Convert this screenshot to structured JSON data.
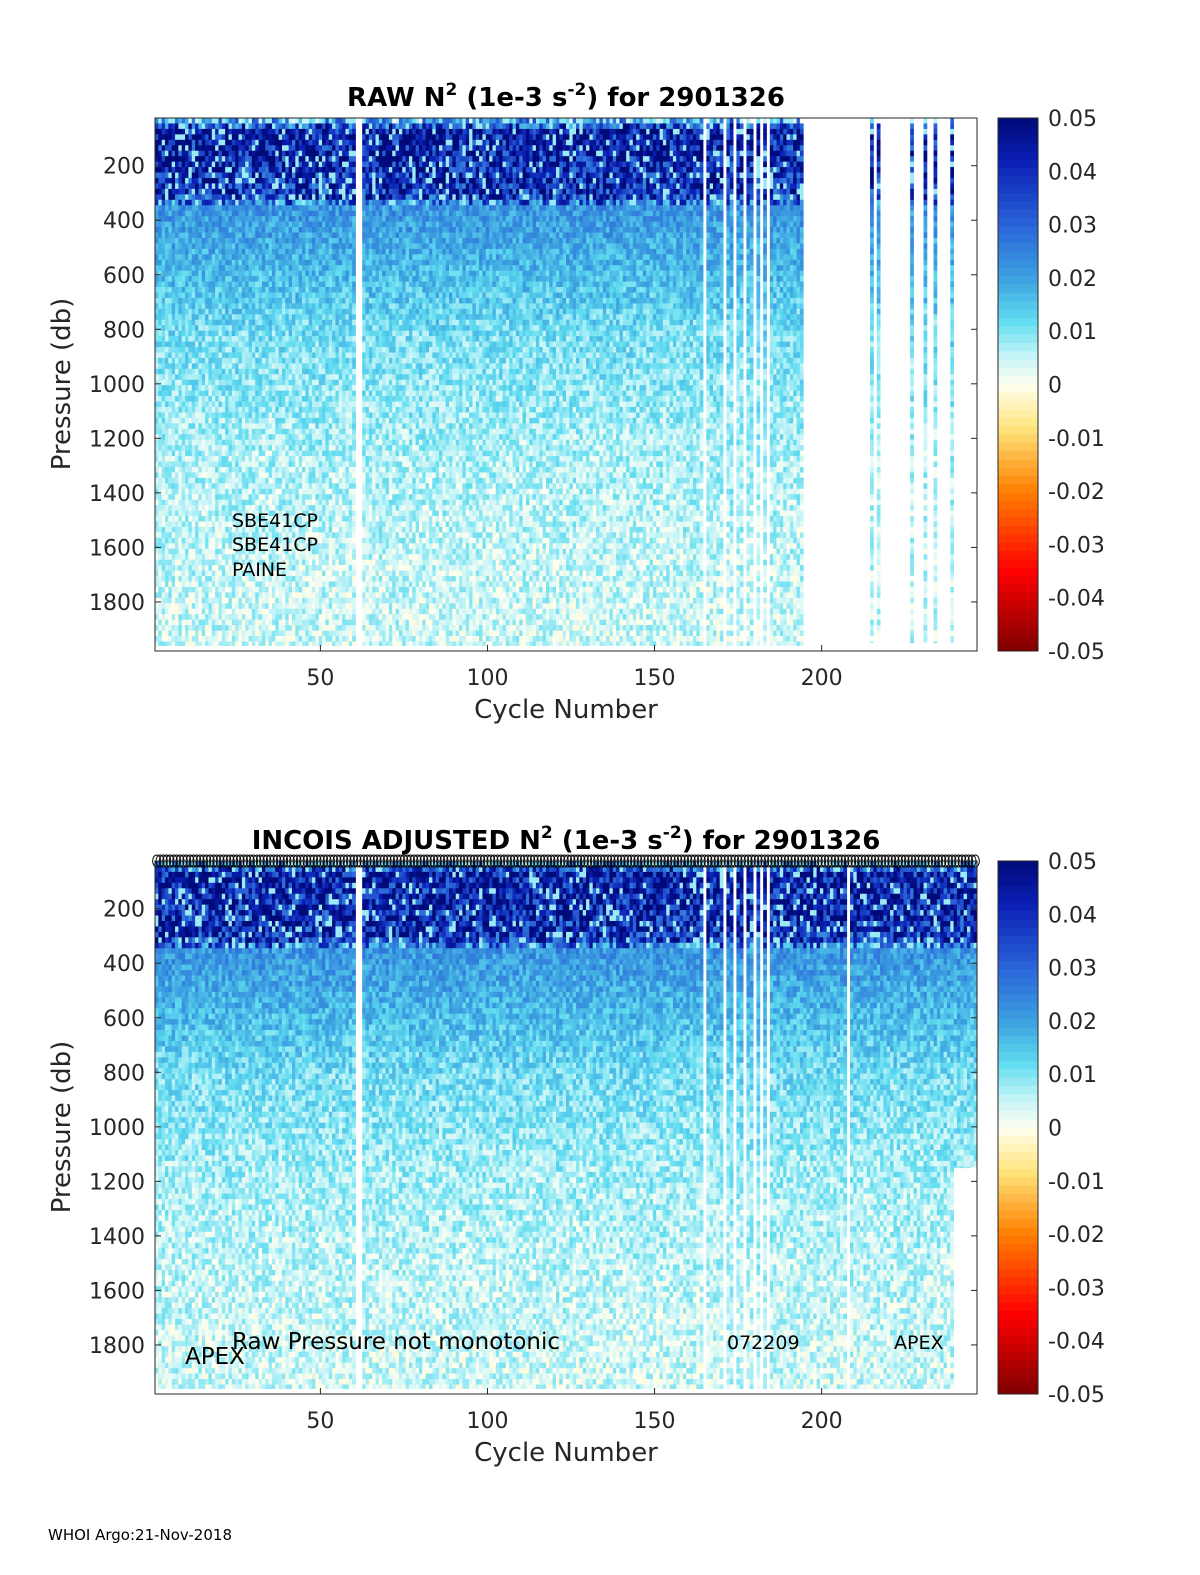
{
  "chart_data": [
    {
      "type": "heatmap",
      "title_parts": [
        "RAW N",
        "2",
        " (1e-3 s",
        "-2",
        ") for 2901326"
      ],
      "xlabel": "Cycle Number",
      "ylabel": "Pressure (db)",
      "xlim": [
        1,
        246
      ],
      "ylim": [
        1980,
        25
      ],
      "xticks": [
        50,
        100,
        150,
        200
      ],
      "yticks": [
        200,
        400,
        600,
        800,
        1000,
        1200,
        1400,
        1600,
        1800
      ],
      "colorbar": {
        "min": -0.05,
        "max": 0.05,
        "ticks": [
          "0.05",
          "0.04",
          "0.03",
          "0.02",
          "0.01",
          "0",
          "-0.01",
          "-0.02",
          "-0.03",
          "-0.04",
          "-0.05"
        ]
      },
      "colormap_stops": [
        {
          "v": -0.05,
          "color": "#7f0000"
        },
        {
          "v": -0.035,
          "color": "#ff0000"
        },
        {
          "v": -0.02,
          "color": "#ff8000"
        },
        {
          "v": -0.008,
          "color": "#ffe680"
        },
        {
          "v": 0.0,
          "color": "#fffff0"
        },
        {
          "v": 0.005,
          "color": "#c8f5f8"
        },
        {
          "v": 0.012,
          "color": "#60dcf0"
        },
        {
          "v": 0.02,
          "color": "#3ca0e0"
        },
        {
          "v": 0.03,
          "color": "#2a64d8"
        },
        {
          "v": 0.042,
          "color": "#0a1eb4"
        },
        {
          "v": 0.05,
          "color": "#000a78"
        }
      ],
      "profiles": [
        {
          "cycles": [
            1,
            194
          ],
          "max_pressure": 1960
        },
        {
          "cycles": [
            215,
            215
          ],
          "max_pressure": 1950
        },
        {
          "cycles": [
            217,
            217
          ],
          "max_pressure": 1950
        },
        {
          "cycles": [
            227,
            227
          ],
          "max_pressure": 1950
        },
        {
          "cycles": [
            231,
            231
          ],
          "max_pressure": 1950
        },
        {
          "cycles": [
            234,
            234
          ],
          "max_pressure": 1950
        },
        {
          "cycles": [
            239,
            239
          ],
          "max_pressure": 1950
        }
      ],
      "missing_cycles": [
        61,
        62,
        165,
        171,
        174,
        177,
        180,
        182,
        184
      ],
      "profile_mean": [
        {
          "p": 25,
          "v": 0.018
        },
        {
          "p": 60,
          "v": 0.045
        },
        {
          "p": 300,
          "v": 0.04
        },
        {
          "p": 340,
          "v": 0.022
        },
        {
          "p": 600,
          "v": 0.016
        },
        {
          "p": 800,
          "v": 0.011
        },
        {
          "p": 1200,
          "v": 0.007
        },
        {
          "p": 1600,
          "v": 0.005
        },
        {
          "p": 1980,
          "v": 0.004
        }
      ],
      "annotations": [
        "SBE41CP",
        "SBE41CP",
        "PAINE"
      ]
    },
    {
      "type": "heatmap",
      "title_parts": [
        "INCOIS  ADJUSTED N",
        "2",
        " (1e-3 s",
        "-2",
        ") for 2901326"
      ],
      "xlabel": "Cycle Number",
      "ylabel": "Pressure (db)",
      "xlim": [
        1,
        246
      ],
      "ylim": [
        1980,
        25
      ],
      "xticks": [
        50,
        100,
        150,
        200
      ],
      "yticks": [
        200,
        400,
        600,
        800,
        1000,
        1200,
        1400,
        1600,
        1800
      ],
      "colorbar": {
        "min": -0.05,
        "max": 0.05,
        "ticks": [
          "0.05",
          "0.04",
          "0.03",
          "0.02",
          "0.01",
          "0",
          "-0.01",
          "-0.02",
          "-0.03",
          "-0.04",
          "-0.05"
        ]
      },
      "profiles": [
        {
          "cycles": [
            1,
            239
          ],
          "max_pressure": 1960
        },
        {
          "cycles": [
            240,
            246
          ],
          "max_pressure": 1150
        }
      ],
      "missing_cycles": [
        61,
        62,
        165,
        171,
        174,
        177,
        180,
        182,
        184,
        208
      ],
      "qc_markers": "circles along top edge for every cycle",
      "annotations": [
        "Raw Pressure not monotonic",
        "072209",
        "APEX",
        "APEX"
      ]
    }
  ],
  "footer": "WHOI Argo:21-Nov-2018"
}
